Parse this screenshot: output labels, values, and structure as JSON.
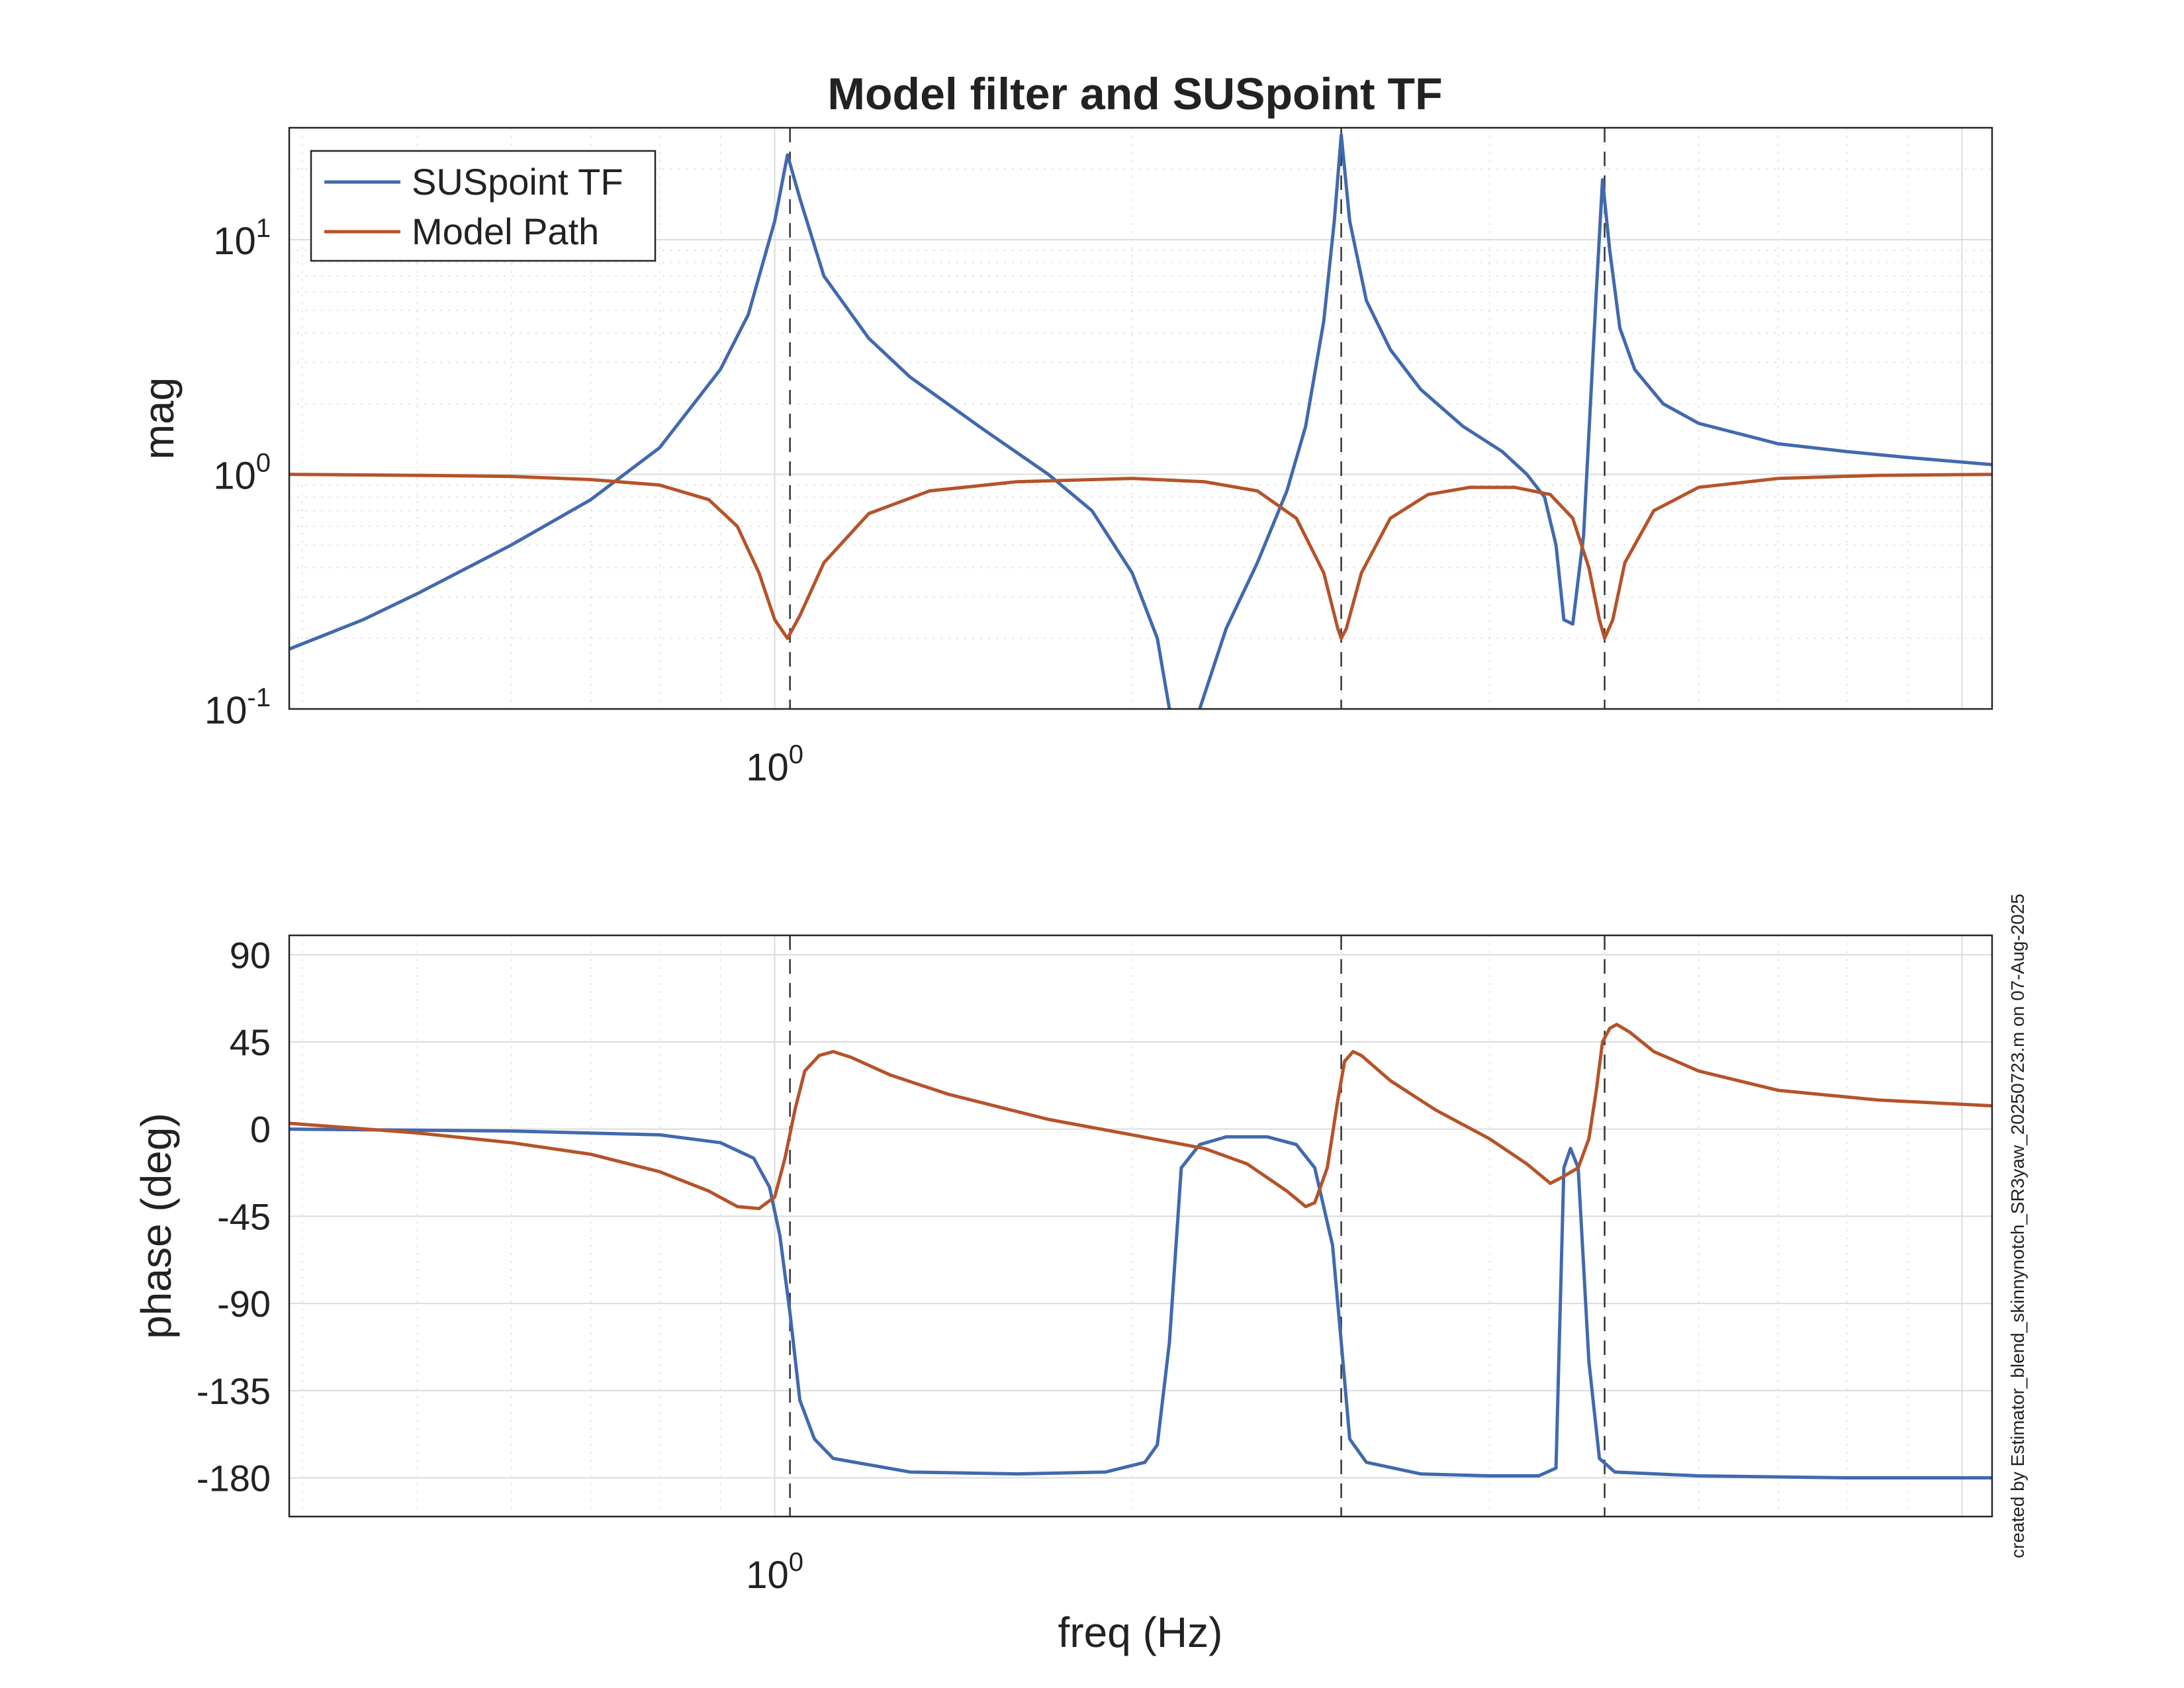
{
  "colors": {
    "background": "#ffffff",
    "grid": "#dcdcdc",
    "axes": "#262626",
    "susp": "#4169AE",
    "model": "#B5532A",
    "marker": "#333333"
  },
  "footnote": "created by Estimator_blend_skinnynotch_SR3yaw_20250723.m on 07-Aug-2025",
  "chart_data": [
    {
      "type": "line",
      "title": "Model filter and SUSpoint TF",
      "xlabel": "",
      "ylabel": "mag",
      "xscale": "log",
      "yscale": "log",
      "xlim": [
        0.39,
        10.6
      ],
      "ylim": [
        0.1,
        30
      ],
      "grid": true,
      "legend_position": "top-left",
      "x_tick_labels": [
        {
          "value": 1.0,
          "base": "10",
          "exp": "0"
        }
      ],
      "y_tick_labels": [
        {
          "value": 0.1,
          "base": "10",
          "exp": "-1"
        },
        {
          "value": 1,
          "base": "10",
          "exp": "0"
        },
        {
          "value": 10,
          "base": "10",
          "exp": "1"
        }
      ],
      "resonance_markers": [
        1.03,
        3.0,
        5.0
      ],
      "series": [
        {
          "name": "SUSpoint TF",
          "color": "#4169AE",
          "points": [
            [
              0.39,
              0.18
            ],
            [
              0.45,
              0.24
            ],
            [
              0.5,
              0.31
            ],
            [
              0.6,
              0.5
            ],
            [
              0.7,
              0.78
            ],
            [
              0.8,
              1.3
            ],
            [
              0.9,
              2.8
            ],
            [
              0.95,
              4.8
            ],
            [
              1.0,
              12
            ],
            [
              1.025,
              23
            ],
            [
              1.05,
              15
            ],
            [
              1.1,
              7
            ],
            [
              1.2,
              3.8
            ],
            [
              1.3,
              2.6
            ],
            [
              1.5,
              1.55
            ],
            [
              1.7,
              1.0
            ],
            [
              1.85,
              0.7
            ],
            [
              2.0,
              0.38
            ],
            [
              2.1,
              0.2
            ],
            [
              2.15,
              0.1
            ],
            [
              null,
              null
            ],
            [
              2.28,
              0.1
            ],
            [
              2.4,
              0.22
            ],
            [
              2.55,
              0.42
            ],
            [
              2.7,
              0.85
            ],
            [
              2.8,
              1.6
            ],
            [
              2.9,
              4.5
            ],
            [
              2.96,
              12
            ],
            [
              3.0,
              28
            ],
            [
              3.05,
              12
            ],
            [
              3.15,
              5.5
            ],
            [
              3.3,
              3.4
            ],
            [
              3.5,
              2.3
            ],
            [
              3.8,
              1.6
            ],
            [
              4.1,
              1.25
            ],
            [
              4.3,
              1.0
            ],
            [
              4.45,
              0.8
            ],
            [
              4.55,
              0.5
            ],
            [
              4.62,
              0.24
            ],
            [
              4.7,
              0.23
            ],
            [
              4.8,
              0.55
            ],
            [
              4.92,
              6
            ],
            [
              4.98,
              18
            ],
            [
              5.05,
              9
            ],
            [
              5.15,
              4.2
            ],
            [
              5.3,
              2.8
            ],
            [
              5.6,
              2.0
            ],
            [
              6.0,
              1.65
            ],
            [
              7.0,
              1.35
            ],
            [
              8.0,
              1.25
            ],
            [
              9.0,
              1.18
            ],
            [
              10.6,
              1.1
            ]
          ]
        },
        {
          "name": "Model Path",
          "color": "#B5532A",
          "points": [
            [
              0.39,
              1.0
            ],
            [
              0.5,
              0.99
            ],
            [
              0.6,
              0.98
            ],
            [
              0.7,
              0.95
            ],
            [
              0.8,
              0.9
            ],
            [
              0.88,
              0.78
            ],
            [
              0.93,
              0.6
            ],
            [
              0.97,
              0.38
            ],
            [
              1.0,
              0.24
            ],
            [
              1.025,
              0.2
            ],
            [
              1.05,
              0.25
            ],
            [
              1.1,
              0.42
            ],
            [
              1.2,
              0.68
            ],
            [
              1.35,
              0.85
            ],
            [
              1.6,
              0.93
            ],
            [
              2.0,
              0.96
            ],
            [
              2.3,
              0.93
            ],
            [
              2.55,
              0.85
            ],
            [
              2.75,
              0.65
            ],
            [
              2.9,
              0.38
            ],
            [
              2.98,
              0.22
            ],
            [
              3.0,
              0.2
            ],
            [
              3.03,
              0.22
            ],
            [
              3.12,
              0.38
            ],
            [
              3.3,
              0.65
            ],
            [
              3.55,
              0.82
            ],
            [
              3.85,
              0.88
            ],
            [
              4.2,
              0.88
            ],
            [
              4.5,
              0.82
            ],
            [
              4.7,
              0.65
            ],
            [
              4.85,
              0.4
            ],
            [
              4.95,
              0.24
            ],
            [
              5.0,
              0.2
            ],
            [
              5.08,
              0.24
            ],
            [
              5.2,
              0.42
            ],
            [
              5.5,
              0.7
            ],
            [
              6.0,
              0.88
            ],
            [
              7.0,
              0.96
            ],
            [
              8.5,
              0.99
            ],
            [
              10.6,
              1.0
            ]
          ]
        }
      ]
    },
    {
      "type": "line",
      "title": "",
      "xlabel": "freq (Hz)",
      "ylabel": "phase (deg)",
      "xscale": "log",
      "xlim": [
        0.39,
        10.6
      ],
      "ylim": [
        -200,
        100
      ],
      "grid": true,
      "x_tick_labels": [
        {
          "value": 1.0,
          "base": "10",
          "exp": "0"
        }
      ],
      "y_ticks": [
        90,
        45,
        0,
        -45,
        -90,
        -135,
        -180
      ],
      "resonance_markers": [
        1.03,
        3.0,
        5.0
      ],
      "series": [
        {
          "name": "SUSpoint TF",
          "color": "#4169AE",
          "points": [
            [
              0.39,
              0
            ],
            [
              0.6,
              -1
            ],
            [
              0.8,
              -3
            ],
            [
              0.9,
              -7
            ],
            [
              0.96,
              -15
            ],
            [
              0.99,
              -30
            ],
            [
              1.01,
              -55
            ],
            [
              1.03,
              -95
            ],
            [
              1.05,
              -140
            ],
            [
              1.08,
              -160
            ],
            [
              1.12,
              -170
            ],
            [
              1.3,
              -177
            ],
            [
              1.6,
              -178
            ],
            [
              1.9,
              -177
            ],
            [
              2.05,
              -172
            ],
            [
              2.1,
              -163
            ],
            [
              2.15,
              -110
            ],
            [
              2.2,
              -20
            ],
            [
              2.28,
              -8
            ],
            [
              2.4,
              -4
            ],
            [
              2.6,
              -4
            ],
            [
              2.75,
              -8
            ],
            [
              2.85,
              -20
            ],
            [
              2.95,
              -60
            ],
            [
              3.01,
              -120
            ],
            [
              3.05,
              -160
            ],
            [
              3.15,
              -172
            ],
            [
              3.5,
              -178
            ],
            [
              4.0,
              -179
            ],
            [
              4.4,
              -179
            ],
            [
              4.55,
              -175
            ],
            [
              4.62,
              -20
            ],
            [
              4.68,
              -10
            ],
            [
              4.75,
              -20
            ],
            [
              4.85,
              -120
            ],
            [
              4.95,
              -170
            ],
            [
              5.1,
              -177
            ],
            [
              6.0,
              -179
            ],
            [
              8.0,
              -180
            ],
            [
              10.6,
              -180
            ]
          ]
        },
        {
          "name": "Model Path",
          "color": "#B5532A",
          "points": [
            [
              0.39,
              3
            ],
            [
              0.5,
              -2
            ],
            [
              0.6,
              -7
            ],
            [
              0.7,
              -13
            ],
            [
              0.8,
              -22
            ],
            [
              0.88,
              -32
            ],
            [
              0.93,
              -40
            ],
            [
              0.97,
              -41
            ],
            [
              1.0,
              -35
            ],
            [
              1.02,
              -15
            ],
            [
              1.04,
              10
            ],
            [
              1.06,
              30
            ],
            [
              1.09,
              38
            ],
            [
              1.12,
              40
            ],
            [
              1.16,
              37
            ],
            [
              1.25,
              28
            ],
            [
              1.4,
              18
            ],
            [
              1.7,
              5
            ],
            [
              2.0,
              -3
            ],
            [
              2.3,
              -10
            ],
            [
              2.5,
              -18
            ],
            [
              2.7,
              -32
            ],
            [
              2.8,
              -40
            ],
            [
              2.85,
              -38
            ],
            [
              2.92,
              -20
            ],
            [
              2.98,
              15
            ],
            [
              3.02,
              35
            ],
            [
              3.07,
              40
            ],
            [
              3.12,
              38
            ],
            [
              3.3,
              25
            ],
            [
              3.6,
              10
            ],
            [
              4.0,
              -5
            ],
            [
              4.3,
              -18
            ],
            [
              4.5,
              -28
            ],
            [
              4.6,
              -25
            ],
            [
              4.75,
              -20
            ],
            [
              4.85,
              -5
            ],
            [
              4.92,
              20
            ],
            [
              4.98,
              45
            ],
            [
              5.05,
              52
            ],
            [
              5.12,
              54
            ],
            [
              5.25,
              50
            ],
            [
              5.5,
              40
            ],
            [
              6.0,
              30
            ],
            [
              7.0,
              20
            ],
            [
              8.5,
              15
            ],
            [
              10.6,
              12
            ]
          ]
        }
      ]
    }
  ]
}
